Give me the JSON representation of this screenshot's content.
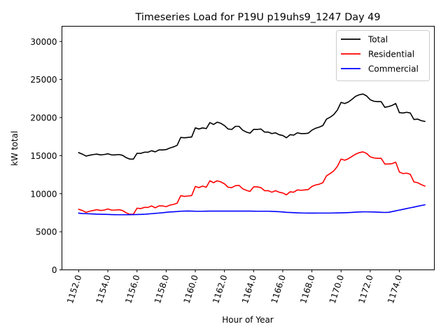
{
  "chart_data": {
    "type": "line",
    "title": "Timeseries Load for P19U p19uhs9_1247  Day 49",
    "xlabel": "Hour of Year",
    "ylabel": "kW total",
    "xlim": [
      1150.85,
      1176.4
    ],
    "ylim": [
      0,
      32000
    ],
    "x_ticks": [
      1152,
      1154,
      1156,
      1158,
      1160,
      1162,
      1164,
      1166,
      1168,
      1170,
      1172,
      1174
    ],
    "x_tick_labels": [
      "1152.0",
      "1154.0",
      "1156.0",
      "1158.0",
      "1160.0",
      "1162.0",
      "1164.0",
      "1166.0",
      "1168.0",
      "1170.0",
      "1172.0",
      "1174.0"
    ],
    "y_ticks": [
      0,
      5000,
      10000,
      15000,
      20000,
      25000,
      30000
    ],
    "y_tick_labels": [
      "0",
      "5000",
      "10000",
      "15000",
      "20000",
      "25000",
      "30000"
    ],
    "legend_position": "top-right",
    "x_start": 1152.0,
    "x_step": 0.25,
    "series": [
      {
        "name": "Total",
        "color": "#000000",
        "values": [
          15400,
          15200,
          14950,
          15050,
          15150,
          15200,
          15100,
          15150,
          15250,
          15100,
          15100,
          15150,
          15050,
          14750,
          14550,
          14550,
          15300,
          15300,
          15450,
          15450,
          15650,
          15500,
          15750,
          15750,
          15800,
          16000,
          16150,
          16350,
          17400,
          17350,
          17400,
          17450,
          18650,
          18500,
          18650,
          18550,
          19350,
          19100,
          19400,
          19250,
          18950,
          18500,
          18450,
          18850,
          18850,
          18350,
          18100,
          17950,
          18450,
          18450,
          18500,
          18100,
          18100,
          17900,
          18000,
          17750,
          17650,
          17350,
          17750,
          17700,
          18000,
          17900,
          17900,
          17950,
          18350,
          18600,
          18750,
          18950,
          19800,
          20050,
          20400,
          21000,
          22000,
          21850,
          22050,
          22400,
          22800,
          23000,
          23100,
          22850,
          22350,
          22150,
          22100,
          22100,
          21350,
          21450,
          21600,
          21850,
          20650,
          20600,
          20700,
          20600,
          19750,
          19800,
          19600,
          19500
        ]
      },
      {
        "name": "Residential",
        "color": "#ff0000",
        "values": [
          7950,
          7800,
          7550,
          7700,
          7800,
          7900,
          7800,
          7850,
          8000,
          7850,
          7850,
          7900,
          7800,
          7500,
          7300,
          7300,
          8100,
          8050,
          8200,
          8200,
          8400,
          8150,
          8400,
          8400,
          8300,
          8500,
          8600,
          8750,
          9750,
          9650,
          9700,
          9750,
          10950,
          10800,
          11000,
          10850,
          11700,
          11450,
          11700,
          11550,
          11300,
          10850,
          10800,
          11050,
          11100,
          10650,
          10450,
          10300,
          10900,
          10900,
          10800,
          10400,
          10400,
          10200,
          10400,
          10200,
          10100,
          9850,
          10250,
          10200,
          10500,
          10450,
          10500,
          10550,
          10950,
          11150,
          11250,
          11450,
          12350,
          12650,
          13000,
          13600,
          14550,
          14400,
          14600,
          14900,
          15200,
          15400,
          15500,
          15300,
          14850,
          14700,
          14650,
          14650,
          13900,
          13900,
          13950,
          14150,
          12850,
          12650,
          12700,
          12550,
          11550,
          11450,
          11200,
          11000
        ]
      },
      {
        "name": "Commercial",
        "color": "#0000ff",
        "values": [
          7450,
          7400,
          7380,
          7360,
          7340,
          7320,
          7300,
          7290,
          7280,
          7260,
          7250,
          7240,
          7240,
          7240,
          7250,
          7260,
          7270,
          7280,
          7300,
          7340,
          7380,
          7420,
          7460,
          7500,
          7560,
          7600,
          7630,
          7660,
          7700,
          7720,
          7730,
          7720,
          7700,
          7690,
          7700,
          7710,
          7720,
          7720,
          7720,
          7720,
          7720,
          7720,
          7720,
          7720,
          7720,
          7720,
          7720,
          7720,
          7710,
          7700,
          7700,
          7700,
          7700,
          7680,
          7660,
          7640,
          7600,
          7560,
          7530,
          7510,
          7490,
          7470,
          7460,
          7450,
          7450,
          7450,
          7460,
          7460,
          7460,
          7460,
          7470,
          7480,
          7490,
          7500,
          7520,
          7550,
          7580,
          7600,
          7620,
          7620,
          7610,
          7600,
          7580,
          7560,
          7540,
          7560,
          7650,
          7750,
          7850,
          7950,
          8050,
          8150,
          8250,
          8350,
          8450,
          8550
        ]
      }
    ]
  }
}
